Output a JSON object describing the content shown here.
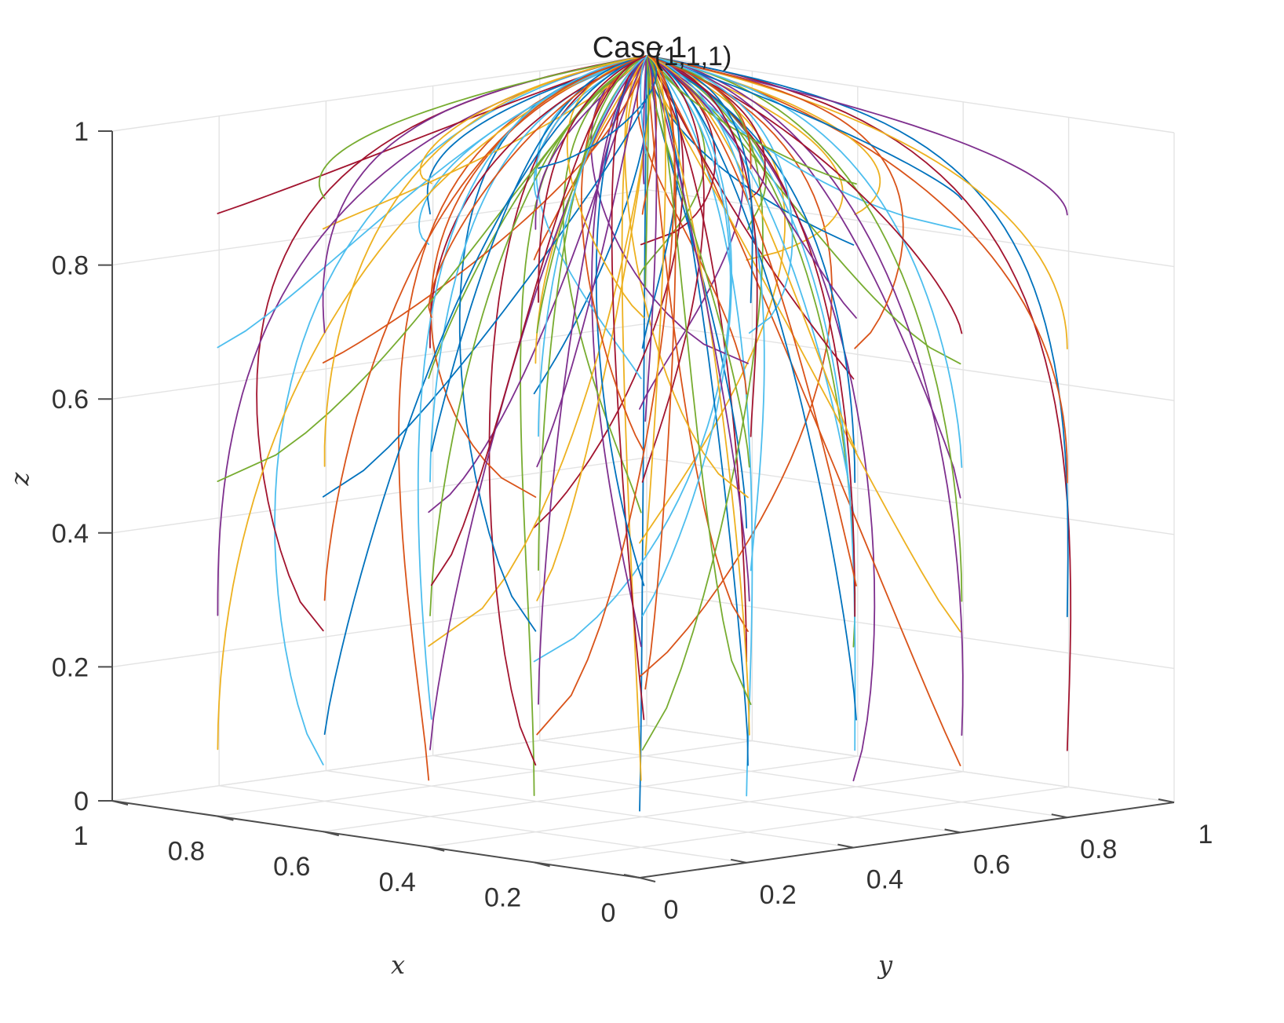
{
  "chart_data": {
    "type": "line",
    "title": "Case 1",
    "xlabel": "x",
    "ylabel": "y",
    "zlabel": "z",
    "xlim": [
      0,
      1
    ],
    "ylim": [
      0,
      1
    ],
    "zlim": [
      0,
      1
    ],
    "grid": true,
    "x_ticks": [
      {
        "value": 0,
        "label": "0"
      },
      {
        "value": 0.2,
        "label": "0.2"
      },
      {
        "value": 0.4,
        "label": "0.4"
      },
      {
        "value": 0.6,
        "label": "0.6"
      },
      {
        "value": 0.8,
        "label": "0.8"
      },
      {
        "value": 1,
        "label": "1"
      }
    ],
    "y_ticks": [
      {
        "value": 0,
        "label": "0"
      },
      {
        "value": 0.2,
        "label": "0.2"
      },
      {
        "value": 0.4,
        "label": "0.4"
      },
      {
        "value": 0.6,
        "label": "0.6"
      },
      {
        "value": 0.8,
        "label": "0.8"
      },
      {
        "value": 1,
        "label": "1"
      }
    ],
    "z_ticks": [
      {
        "value": 0,
        "label": "0"
      },
      {
        "value": 0.2,
        "label": "0.2"
      },
      {
        "value": 0.4,
        "label": "0.4"
      },
      {
        "value": 0.6,
        "label": "0.6"
      },
      {
        "value": 0.8,
        "label": "0.8"
      },
      {
        "value": 1,
        "label": "1"
      }
    ],
    "endpoint": {
      "x": 1,
      "y": 1,
      "z": 1,
      "label": "(1,1,1)"
    },
    "line_colors": [
      "#0072BD",
      "#D95319",
      "#EDB120",
      "#7E2F8E",
      "#77AC30",
      "#4DBEEE",
      "#A2142F"
    ],
    "trajectory_grid": {
      "x0_values": [
        0,
        0.2,
        0.4,
        0.6,
        0.8
      ],
      "y0_values": [
        0,
        0.2,
        0.4,
        0.6,
        0.8
      ],
      "z0_values": [
        0.1,
        0.3,
        0.5,
        0.7,
        0.9
      ],
      "converge_to": [
        1,
        1,
        1
      ]
    }
  }
}
